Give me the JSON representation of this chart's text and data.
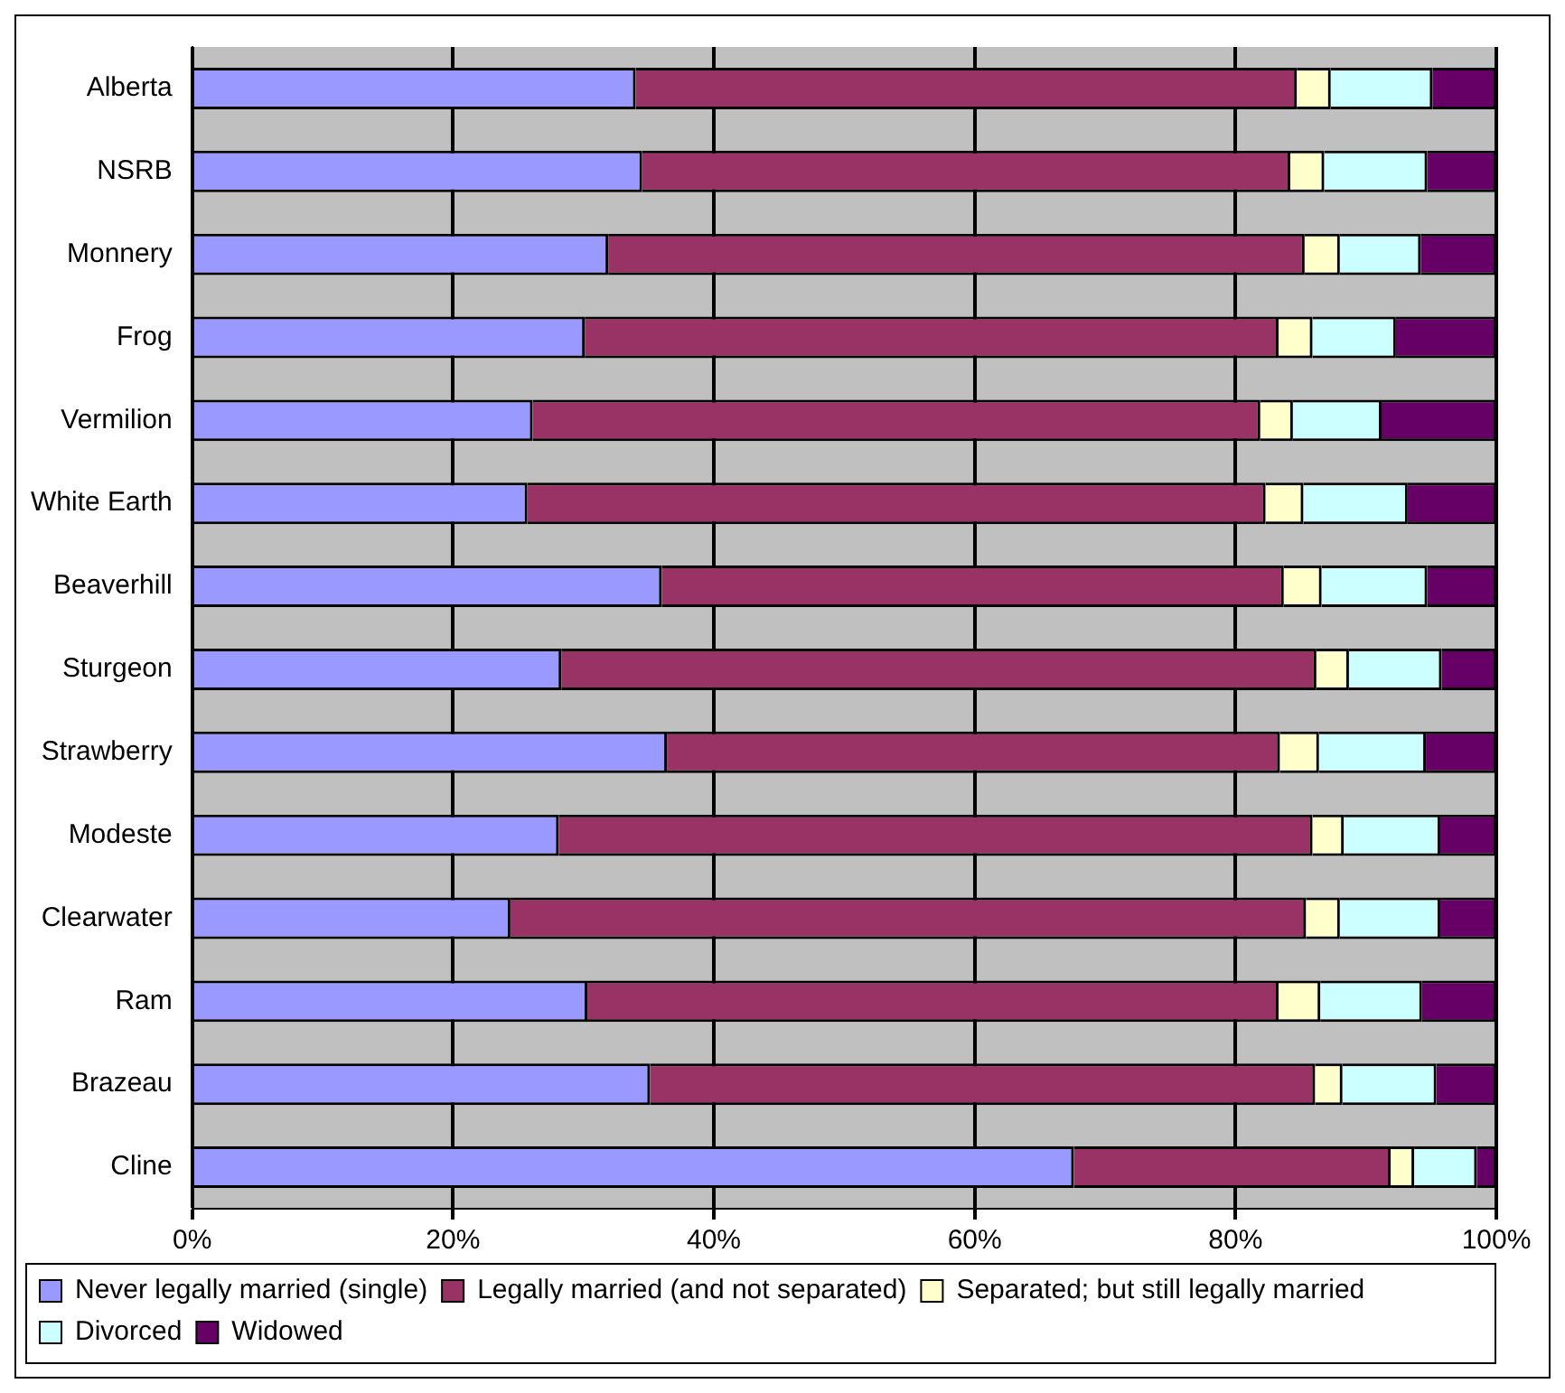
{
  "chart_data": {
    "type": "bar",
    "orientation": "horizontal",
    "stacked": true,
    "categories": [
      "Alberta",
      "NSRB",
      "Monnery",
      "Frog",
      "Vermilion",
      "White Earth",
      "Beaverhill",
      "Sturgeon",
      "Strawberry",
      "Modeste",
      "Clearwater",
      "Ram",
      "Brazeau",
      "Cline"
    ],
    "series": [
      {
        "name": "Never legally married (single)",
        "color": "#9999ff",
        "values": [
          34,
          34.5,
          31.9,
          30.1,
          26.1,
          25.7,
          36,
          28.3,
          36.4,
          28.1,
          24.4,
          30.3,
          35.1,
          67.6
        ]
      },
      {
        "name": "Legally married (and not separated)",
        "color": "#993366",
        "values": [
          50.7,
          49.7,
          53.4,
          53.2,
          55.8,
          56.6,
          47.7,
          57.9,
          47,
          57.8,
          61,
          53,
          51,
          24.3
        ]
      },
      {
        "name": "Separated; but still legally married",
        "color": "#ffffcc",
        "values": [
          2.6,
          2.6,
          2.7,
          2.6,
          2.5,
          2.9,
          2.9,
          2.5,
          3,
          2.4,
          2.6,
          3.2,
          2.1,
          1.8
        ]
      },
      {
        "name": "Divorced",
        "color": "#ccffff",
        "values": [
          7.8,
          7.9,
          6.2,
          6.4,
          6.8,
          8,
          8.1,
          7.1,
          8.2,
          7.4,
          7.7,
          7.8,
          7.2,
          4.8
        ]
      },
      {
        "name": "Widowed",
        "color": "#660066",
        "values": [
          4.9,
          5.3,
          5.8,
          7.7,
          8.8,
          6.8,
          5.3,
          4.2,
          5.4,
          4.3,
          4.3,
          5.7,
          4.6,
          1.5
        ]
      }
    ],
    "xlim": [
      0,
      100
    ],
    "xticks": [
      {
        "value": 0,
        "label": "0%"
      },
      {
        "value": 20,
        "label": "20%"
      },
      {
        "value": 40,
        "label": "40%"
      },
      {
        "value": 60,
        "label": "60%"
      },
      {
        "value": 80,
        "label": "80%"
      },
      {
        "value": 100,
        "label": "100%"
      }
    ],
    "grid": "x",
    "legend": "bottom"
  }
}
